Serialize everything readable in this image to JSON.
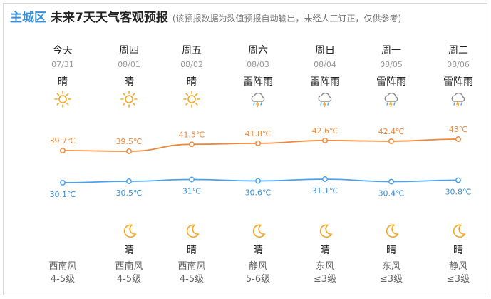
{
  "header": {
    "district": "主城区",
    "title": "未来7天天气客观预报",
    "note": "(该预报数据为数值预报自动输出，未经人工订正，仅供参考)"
  },
  "colors": {
    "accent_blue": "#3b8fd8",
    "high_line": "#f0883c",
    "low_line": "#4aa3f0",
    "sun": "#f5a623"
  },
  "days": [
    {
      "name": "今天",
      "date": "07/31",
      "day_weather": "晴",
      "day_icon": "sun-icon",
      "high": "39.7℃",
      "low": "30.1℃",
      "night_icon": "moon-icon",
      "night_weather": "",
      "wind_dir": "西南风",
      "wind_level": "4-5级"
    },
    {
      "name": "周四",
      "date": "08/01",
      "day_weather": "晴",
      "day_icon": "sun-icon",
      "high": "39.5℃",
      "low": "30.5℃",
      "night_icon": "moon-icon",
      "night_weather": "晴",
      "wind_dir": "西南风",
      "wind_level": "4-5级"
    },
    {
      "name": "周五",
      "date": "08/02",
      "day_weather": "晴",
      "day_icon": "sun-icon",
      "high": "41.5℃",
      "low": "31℃",
      "night_icon": "moon-icon",
      "night_weather": "晴",
      "wind_dir": "西南风",
      "wind_level": "4-5级"
    },
    {
      "name": "周六",
      "date": "08/03",
      "day_weather": "雷阵雨",
      "day_icon": "thunderstorm-icon",
      "high": "41.8℃",
      "low": "30.6℃",
      "night_icon": "moon-icon",
      "night_weather": "晴",
      "wind_dir": "静风",
      "wind_level": "5-6级"
    },
    {
      "name": "周日",
      "date": "08/04",
      "day_weather": "雷阵雨",
      "day_icon": "thunderstorm-icon",
      "high": "42.6℃",
      "low": "31.1℃",
      "night_icon": "moon-icon",
      "night_weather": "晴",
      "wind_dir": "东风",
      "wind_level": "≤3级"
    },
    {
      "name": "周一",
      "date": "08/05",
      "day_weather": "雷阵雨",
      "day_icon": "thunderstorm-icon",
      "high": "42.4℃",
      "low": "30.4℃",
      "night_icon": "moon-icon",
      "night_weather": "晴",
      "wind_dir": "东风",
      "wind_level": "≤3级"
    },
    {
      "name": "周二",
      "date": "08/06",
      "day_weather": "雷阵雨",
      "day_icon": "thunderstorm-icon",
      "high": "43℃",
      "low": "30.8℃",
      "night_icon": "moon-icon",
      "night_weather": "晴",
      "wind_dir": "静风",
      "wind_level": "≤3级"
    }
  ],
  "temps": {
    "high": [
      39.7,
      39.5,
      41.5,
      41.8,
      42.6,
      42.4,
      43
    ],
    "low": [
      30.1,
      30.5,
      31,
      30.6,
      31.1,
      30.4,
      30.8
    ]
  }
}
